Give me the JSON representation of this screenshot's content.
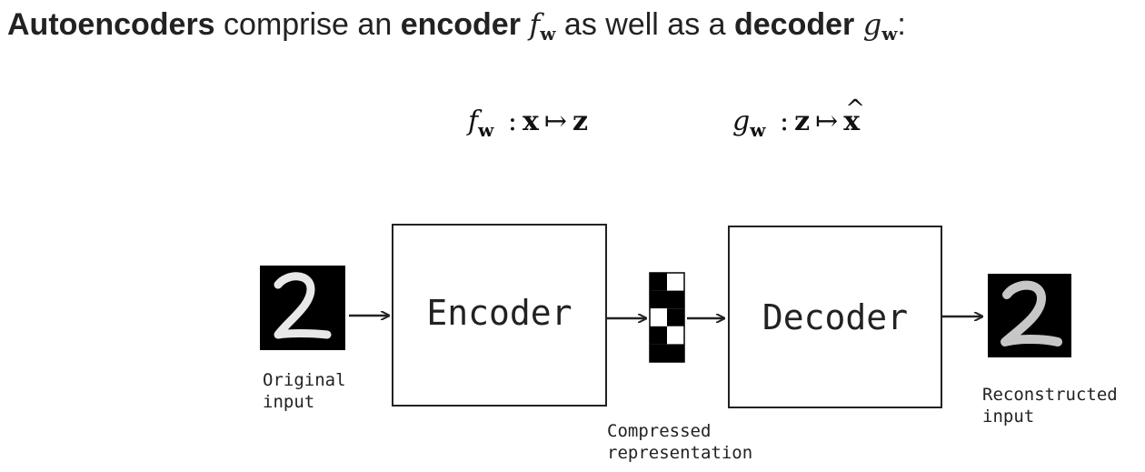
{
  "heading": {
    "part1": "Autoencoders",
    "part2": " comprise an ",
    "part3": "encoder",
    "encoder_symbol": "f",
    "encoder_subscript": "w",
    "part4": " as well as a ",
    "part5": "decoder",
    "decoder_symbol": "g",
    "decoder_subscript": "w",
    "part6": ":"
  },
  "formulas": {
    "encoder": {
      "func": "f",
      "sub": "w",
      "colon": ":",
      "input": "x",
      "arrow": "↦",
      "output": "z"
    },
    "decoder": {
      "func": "g",
      "sub": "w",
      "colon": ":",
      "input": "z",
      "arrow": "↦",
      "output": "x",
      "output_hat": "^"
    }
  },
  "diagram": {
    "encoder_label": "Encoder",
    "decoder_label": "Decoder",
    "original_input_label": [
      "Original",
      "input"
    ],
    "compressed_label": [
      "Compressed",
      "representation"
    ],
    "reconstructed_label": [
      "Reconstructed",
      "input"
    ],
    "digit_glyph": "2",
    "code_cells": [
      "black",
      "white",
      "black",
      "black",
      "white",
      "black",
      "black",
      "white",
      "black",
      "black"
    ]
  },
  "colors": {
    "text": "#222222",
    "box_stroke": "#222222",
    "digit_background": "#000000",
    "digit_stroke": "#e8e8e8"
  }
}
